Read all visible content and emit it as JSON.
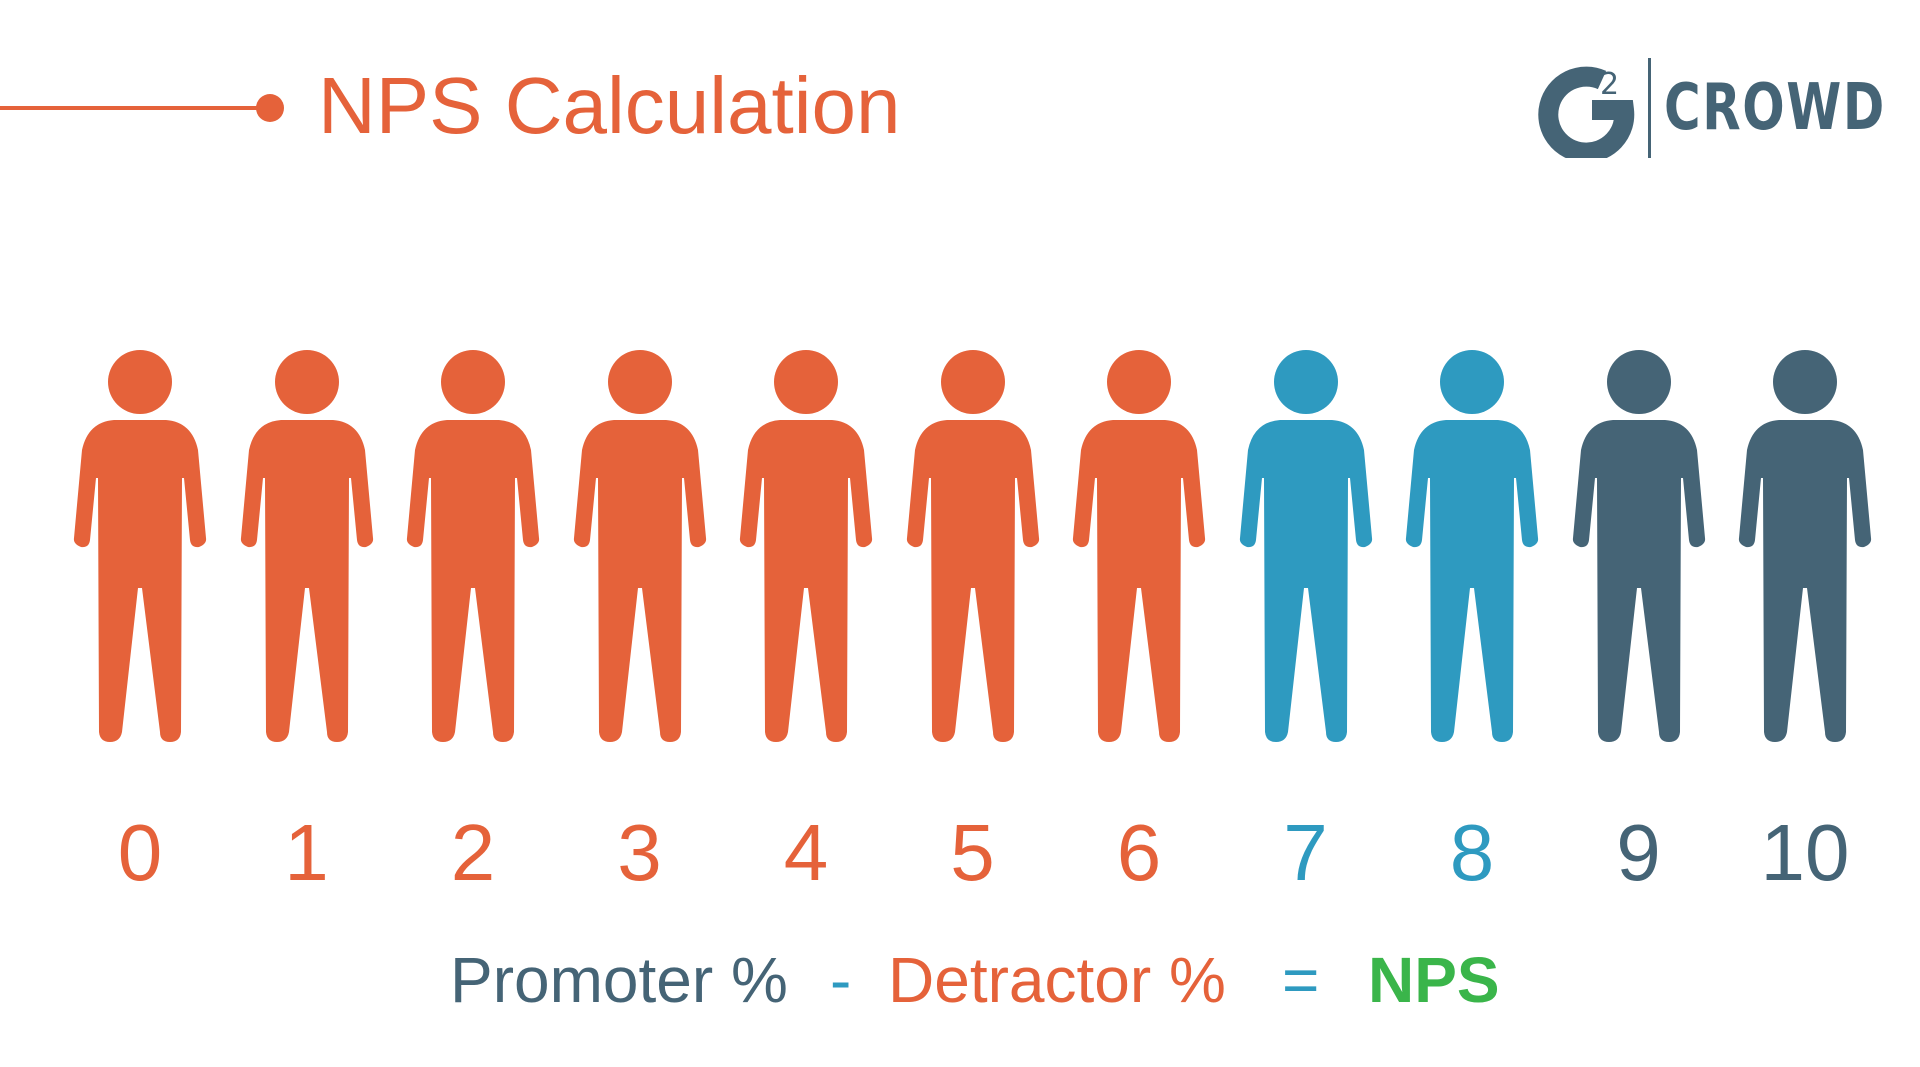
{
  "header": {
    "title": "NPS Calculation",
    "title_color": "#E5623A"
  },
  "logo": {
    "mark_text": "2",
    "wordmark": "CROWD",
    "color": "#456476"
  },
  "people": [
    {
      "score": "0",
      "group": "detractor",
      "color": "#E5623A"
    },
    {
      "score": "1",
      "group": "detractor",
      "color": "#E5623A"
    },
    {
      "score": "2",
      "group": "detractor",
      "color": "#E5623A"
    },
    {
      "score": "3",
      "group": "detractor",
      "color": "#E5623A"
    },
    {
      "score": "4",
      "group": "detractor",
      "color": "#E5623A"
    },
    {
      "score": "5",
      "group": "detractor",
      "color": "#E5623A"
    },
    {
      "score": "6",
      "group": "detractor",
      "color": "#E5623A"
    },
    {
      "score": "7",
      "group": "passive",
      "color": "#2E9AC0"
    },
    {
      "score": "8",
      "group": "passive",
      "color": "#2E9AC0"
    },
    {
      "score": "9",
      "group": "promoter",
      "color": "#456476"
    },
    {
      "score": "10",
      "group": "promoter",
      "color": "#456476"
    }
  ],
  "formula": {
    "promoter": "Promoter %",
    "minus": "-",
    "detractor": "Detractor %",
    "equals": "=",
    "result": "NPS",
    "promoter_color": "#456476",
    "detractor_color": "#E5623A",
    "operator_color": "#2E9AC0",
    "result_color": "#3AB54A"
  }
}
